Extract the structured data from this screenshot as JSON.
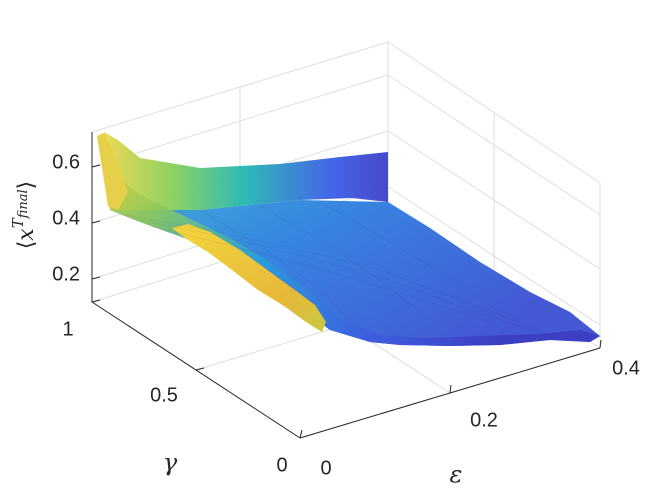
{
  "chart_data": {
    "type": "surface",
    "x": {
      "label": "ε",
      "range": [
        0,
        0.4
      ],
      "ticks": [
        "0",
        "0.2",
        "0.4"
      ]
    },
    "y": {
      "label": "γ",
      "range": [
        0,
        1
      ],
      "ticks": [
        "0",
        "0.5",
        "1"
      ]
    },
    "z": {
      "label": "⟨x^T_final⟩",
      "ticks": [
        "0.2",
        "0.4",
        "0.6"
      ]
    },
    "grid": true,
    "colormap": "parula",
    "sample_surface": [
      {
        "epsilon": 0.0,
        "gamma": 1.0,
        "value": 0.65
      },
      {
        "epsilon": 0.0,
        "gamma": 0.5,
        "value": 0.5
      },
      {
        "epsilon": 0.0,
        "gamma": 0.0,
        "value": 0.2
      },
      {
        "epsilon": 0.2,
        "gamma": 1.0,
        "value": 0.58
      },
      {
        "epsilon": 0.2,
        "gamma": 0.5,
        "value": 0.35
      },
      {
        "epsilon": 0.2,
        "gamma": 0.0,
        "value": 0.25
      },
      {
        "epsilon": 0.4,
        "gamma": 1.0,
        "value": 0.55
      },
      {
        "epsilon": 0.4,
        "gamma": 0.5,
        "value": 0.2
      },
      {
        "epsilon": 0.4,
        "gamma": 0.0,
        "value": 0.2
      }
    ]
  }
}
